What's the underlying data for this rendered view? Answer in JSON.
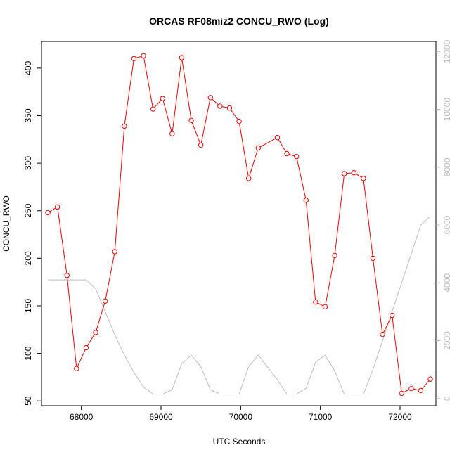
{
  "chart_data": {
    "type": "line",
    "title": "ORCAS RF08miz2 CONCU_RWO (Log)",
    "xlabel": "UTC Seconds",
    "ylabel": "CONCU_RWO",
    "xlim": [
      67500,
      72450
    ],
    "ylim": [
      45,
      428
    ],
    "y2lim": [
      -250,
      12350
    ],
    "x_ticks": [
      68000,
      69000,
      70000,
      71000,
      72000
    ],
    "y_ticks": [
      50,
      100,
      150,
      200,
      250,
      300,
      350,
      400
    ],
    "y2_ticks": [
      0,
      2000,
      4000,
      6000,
      8000,
      10000,
      12000
    ],
    "grid": false,
    "colors": {
      "primary": "#ff0000",
      "secondary": "#bebebe",
      "axis": "#000000",
      "secondary_axis": "#bebebe"
    },
    "series": [
      {
        "axis": "left",
        "style": "line+open-circles",
        "x": [
          67580,
          67700,
          67820,
          67940,
          68060,
          68180,
          68300,
          68420,
          68540,
          68660,
          68780,
          68900,
          69020,
          69140,
          69260,
          69380,
          69500,
          69620,
          69740,
          69860,
          69980,
          70100,
          70220,
          70460,
          70580,
          70700,
          70820,
          70940,
          71060,
          71180,
          71300,
          71420,
          71540,
          71660,
          71780,
          71900,
          72020,
          72140,
          72260,
          72380
        ],
        "y": [
          248,
          254,
          182,
          84,
          106,
          122,
          155,
          207,
          339,
          410,
          413,
          357,
          368,
          331,
          411,
          345,
          319,
          369,
          360,
          358,
          344,
          284,
          316,
          327,
          310,
          307,
          261,
          154,
          149,
          203,
          289,
          290,
          284,
          200,
          120,
          140,
          58,
          63,
          61,
          73
        ]
      },
      {
        "axis": "right",
        "style": "line",
        "x": [
          67580,
          68060,
          68180,
          68300,
          68420,
          68540,
          68660,
          68780,
          68900,
          69020,
          69140,
          69260,
          69380,
          69500,
          69620,
          69740,
          69860,
          69980,
          70100,
          70220,
          70460,
          70580,
          70700,
          70820,
          70940,
          71060,
          71180,
          71300,
          71420,
          71540,
          71660,
          71780,
          71900,
          72020,
          72140,
          72260,
          72380
        ],
        "y": [
          4100,
          4100,
          3800,
          3000,
          2200,
          1500,
          900,
          400,
          150,
          150,
          300,
          1200,
          1500,
          1100,
          300,
          150,
          150,
          150,
          1100,
          1500,
          650,
          150,
          150,
          350,
          1250,
          1500,
          950,
          150,
          150,
          150,
          1000,
          2000,
          3000,
          4000,
          5000,
          6000,
          6300
        ]
      }
    ]
  }
}
